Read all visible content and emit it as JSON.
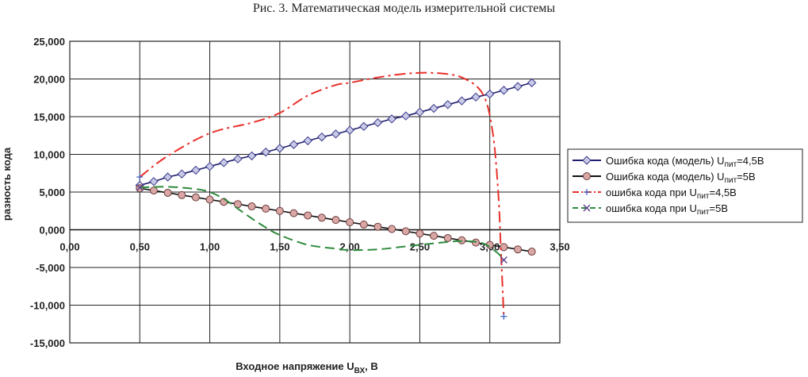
{
  "caption": "Рис. 3. Математическая модель измерительной системы",
  "chart_data": {
    "type": "line",
    "title": "Рис. 3. Математическая модель измерительной системы",
    "xlabel_main": "Входное напряжение U",
    "xlabel_sub": "ВХ",
    "xlabel_tail": ", В",
    "ylabel": "разность кода",
    "xlim": [
      0,
      3.5
    ],
    "ylim": [
      -15000,
      25000
    ],
    "x_ticks": [
      0,
      0.5,
      1.0,
      1.5,
      2.0,
      2.5,
      3.0,
      3.5
    ],
    "x_tick_labels": [
      "0,00",
      "0,50",
      "1,00",
      "1,50",
      "2,00",
      "2,50",
      "3,00",
      "3,50"
    ],
    "y_ticks": [
      -15000,
      -10000,
      -5000,
      0,
      5000,
      10000,
      15000,
      20000,
      25000
    ],
    "y_tick_labels": [
      "-15,000",
      "-10,000",
      "-5,000",
      "0,000",
      "5,000",
      "10,000",
      "15,000",
      "20,000",
      "25,000"
    ],
    "grid": true,
    "legend_position": "right",
    "series": [
      {
        "name_main": "Ошибка кода (модель) U",
        "name_sub": "пит",
        "name_tail": "=4,5В",
        "color": "#1f1f6e",
        "style": "solid",
        "marker": "diamond",
        "x": [
          0.5,
          0.6,
          0.7,
          0.8,
          0.9,
          1.0,
          1.1,
          1.2,
          1.3,
          1.4,
          1.5,
          1.6,
          1.7,
          1.8,
          1.9,
          2.0,
          2.1,
          2.2,
          2.3,
          2.4,
          2.5,
          2.6,
          2.7,
          2.8,
          2.9,
          3.0,
          3.1,
          3.2,
          3.3
        ],
        "y": [
          5900,
          6400,
          7000,
          7400,
          7900,
          8400,
          8900,
          9400,
          9800,
          10300,
          10800,
          11300,
          11800,
          12300,
          12700,
          13200,
          13700,
          14200,
          14700,
          15100,
          15600,
          16100,
          16600,
          17100,
          17600,
          18000,
          18500,
          19000,
          19500
        ]
      },
      {
        "name_main": "Ошибка кода (модель) U",
        "name_sub": "пит",
        "name_tail": "=5В",
        "color": "#111111",
        "style": "solid",
        "marker": "circle",
        "x": [
          0.5,
          0.6,
          0.7,
          0.8,
          0.9,
          1.0,
          1.1,
          1.2,
          1.3,
          1.4,
          1.5,
          1.6,
          1.7,
          1.8,
          1.9,
          2.0,
          2.1,
          2.2,
          2.3,
          2.4,
          2.5,
          2.6,
          2.7,
          2.8,
          2.9,
          3.0,
          3.1,
          3.2,
          3.3
        ],
        "y": [
          5500,
          5200,
          4900,
          4600,
          4300,
          4000,
          3700,
          3400,
          3100,
          2800,
          2500,
          2200,
          1900,
          1600,
          1300,
          1000,
          700,
          400,
          100,
          -200,
          -500,
          -800,
          -1100,
          -1400,
          -1700,
          -2000,
          -2300,
          -2600,
          -2900
        ]
      },
      {
        "name_main": "ошибка кода при U",
        "name_sub": "пит",
        "name_tail": "=4,5В",
        "color": "#e8302a",
        "style": "dashdot",
        "marker": "plus",
        "x": [
          0.5,
          0.7,
          1.0,
          1.3,
          1.5,
          1.7,
          1.9,
          2.0,
          2.2,
          2.4,
          2.6,
          2.8,
          2.95,
          3.02,
          3.06,
          3.08,
          3.1
        ],
        "y": [
          7000,
          9800,
          12800,
          14200,
          15500,
          17800,
          19200,
          19500,
          20200,
          20700,
          20800,
          20200,
          18000,
          13000,
          5000,
          -3000,
          -11500
        ]
      },
      {
        "name_main": "ошибка кода при U",
        "name_sub": "пит",
        "name_tail": "=5В",
        "color": "#2e8b3e",
        "style": "dashed",
        "marker": "x",
        "x": [
          0.5,
          0.7,
          0.9,
          1.0,
          1.1,
          1.2,
          1.3,
          1.4,
          1.5,
          1.7,
          1.9,
          2.0,
          2.2,
          2.4,
          2.6,
          2.8,
          2.95,
          3.05,
          3.1
        ],
        "y": [
          5600,
          5700,
          5400,
          5000,
          4100,
          2800,
          1500,
          300,
          -700,
          -2000,
          -2500,
          -2700,
          -2600,
          -2200,
          -1800,
          -1500,
          -1800,
          -3000,
          -4000
        ]
      }
    ]
  }
}
